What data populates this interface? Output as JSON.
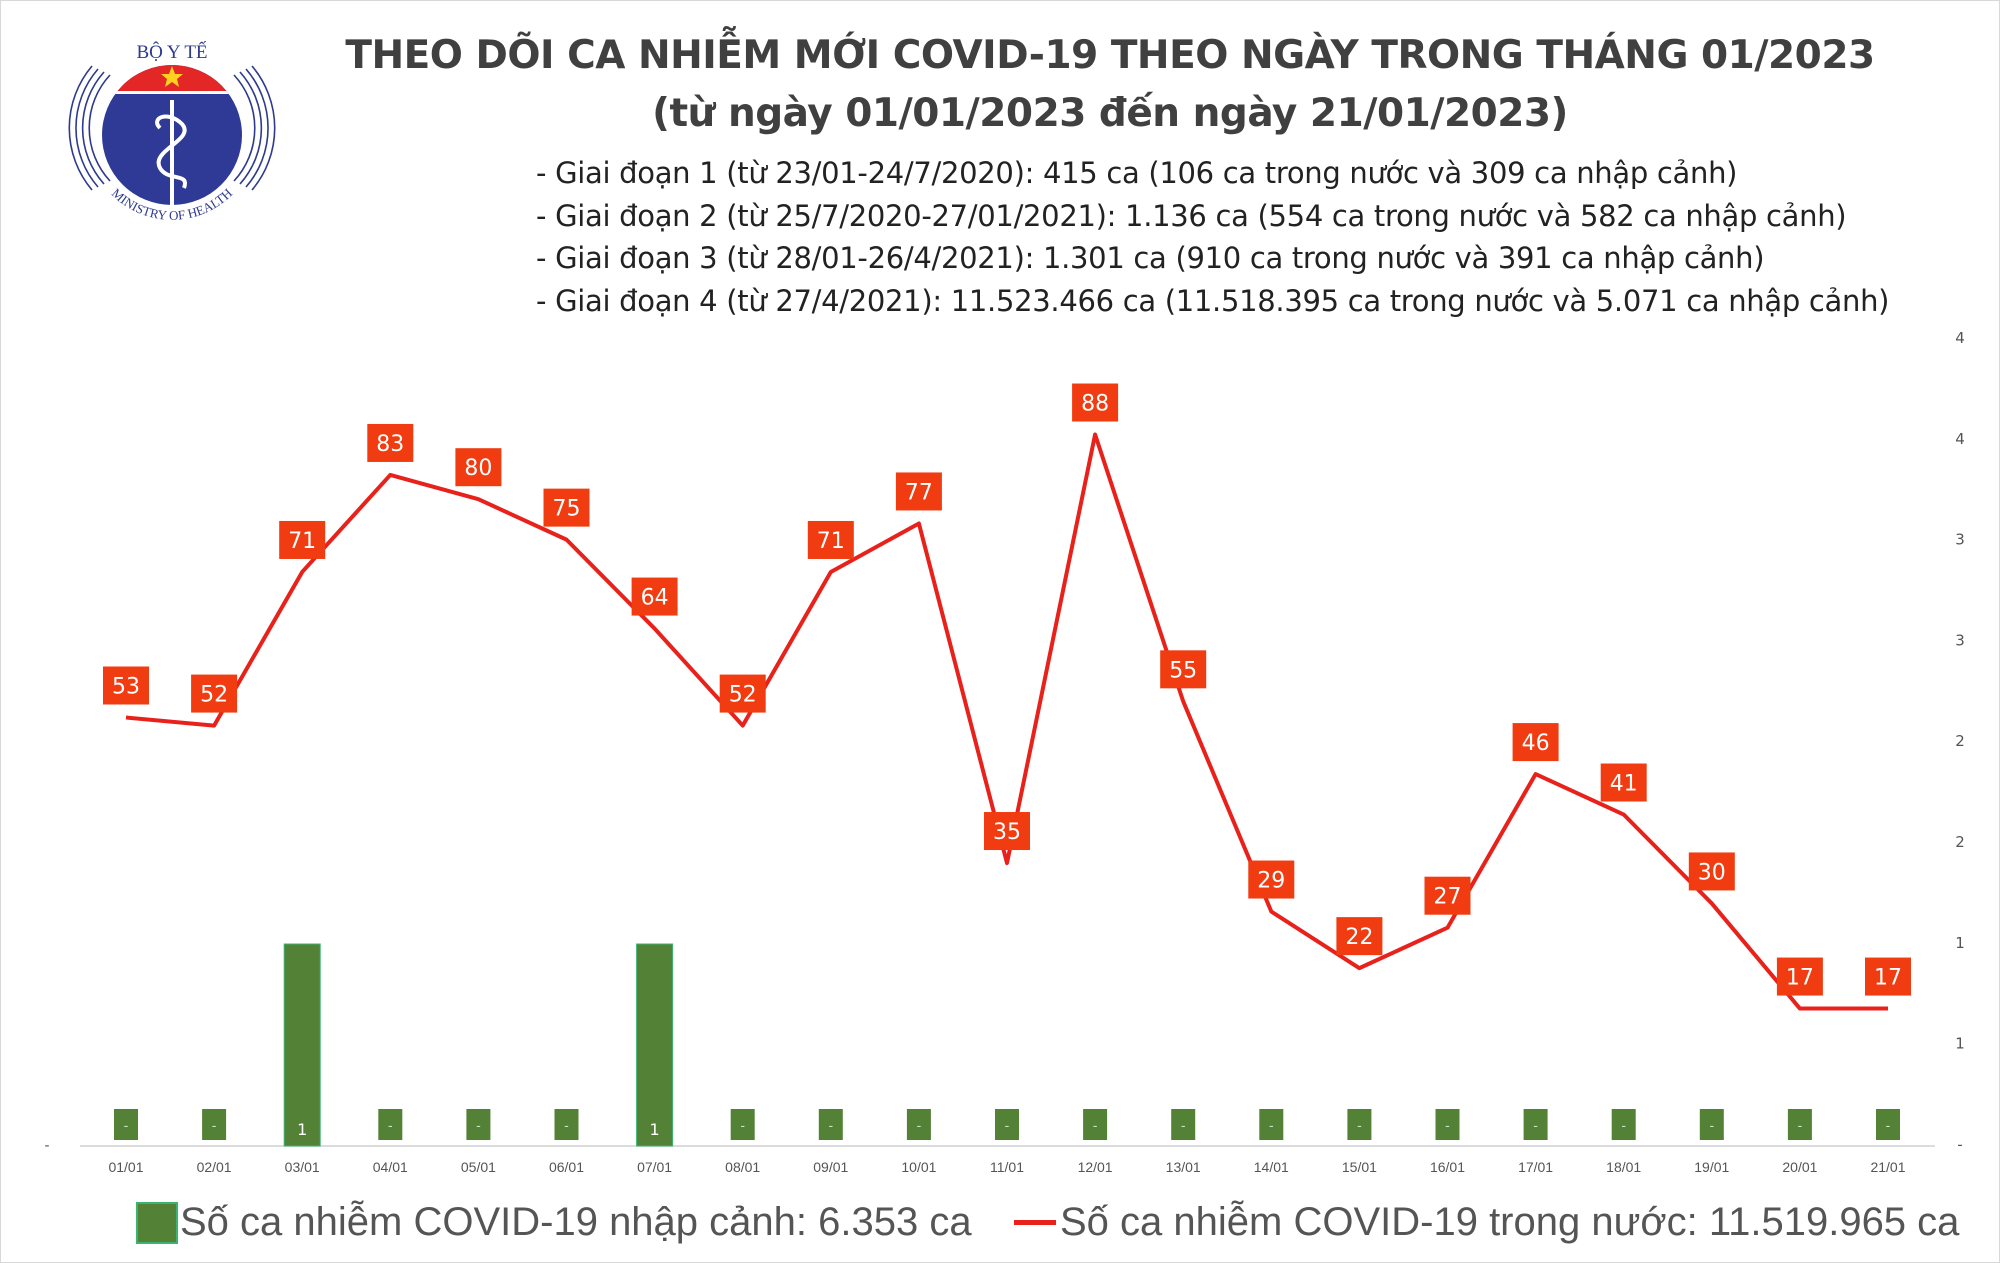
{
  "logo": {
    "top_text": "BỘ Y TẾ",
    "bottom_text": "MINISTRY OF HEALTH"
  },
  "header": {
    "title_line1": "THEO DÕI CA NHIỄM MỚI COVID-19 THEO NGÀY TRONG THÁNG 01/2023",
    "title_line2": "(từ ngày 01/01/2023 đến ngày 21/01/2023)",
    "bullets": [
      "- Giai đoạn 1 (từ 23/01-24/7/2020): 415 ca (106 ca trong nước và 309 ca nhập cảnh)",
      "- Giai đoạn 2 (từ 25/7/2020-27/01/2021): 1.136 ca (554 ca trong nước và 582 ca nhập cảnh)",
      "- Giai đoạn 3 (từ 28/01-26/4/2021): 1.301 ca (910 ca trong nước và 391 ca nhập cảnh)",
      "- Giai đoạn 4 (từ 27/4/2021): 11.523.466 ca (11.518.395 ca trong nước và 5.071 ca nhập cảnh)"
    ]
  },
  "chart_data": {
    "type": "bar+line",
    "categories": [
      "01/01",
      "02/01",
      "03/01",
      "04/01",
      "05/01",
      "06/01",
      "07/01",
      "08/01",
      "09/01",
      "10/01",
      "11/01",
      "12/01",
      "13/01",
      "14/01",
      "15/01",
      "16/01",
      "17/01",
      "18/01",
      "19/01",
      "20/01",
      "21/01"
    ],
    "series": [
      {
        "name": "Số ca nhiễm COVID-19 nhập cảnh: 6.353 ca",
        "type": "bar",
        "color": "#538135",
        "values": [
          0,
          0,
          1,
          0,
          0,
          0,
          1,
          0,
          0,
          0,
          0,
          0,
          0,
          0,
          0,
          0,
          0,
          0,
          0,
          0,
          0
        ],
        "labels": [
          "-",
          "-",
          "1",
          "-",
          "-",
          "-",
          "1",
          "-",
          "-",
          "-",
          "-",
          "-",
          "-",
          "-",
          "-",
          "-",
          "-",
          "-",
          "-",
          "-",
          "-"
        ]
      },
      {
        "name": "Số ca nhiễm COVID-19 trong nước: 11.519.965 ca",
        "type": "line",
        "color": "#e8211b",
        "label_bg": "#f03c10",
        "values": [
          53,
          52,
          71,
          83,
          80,
          75,
          64,
          52,
          71,
          77,
          35,
          88,
          55,
          29,
          22,
          27,
          46,
          41,
          30,
          17,
          17
        ]
      }
    ],
    "left_axis_ticks": [
      "-"
    ],
    "right_axis_ticks": [
      "4",
      "4",
      "3",
      "3",
      "2",
      "2",
      "1",
      "1",
      "-"
    ],
    "bar_axis_max": 4,
    "legend_position": "bottom",
    "grid": false
  }
}
